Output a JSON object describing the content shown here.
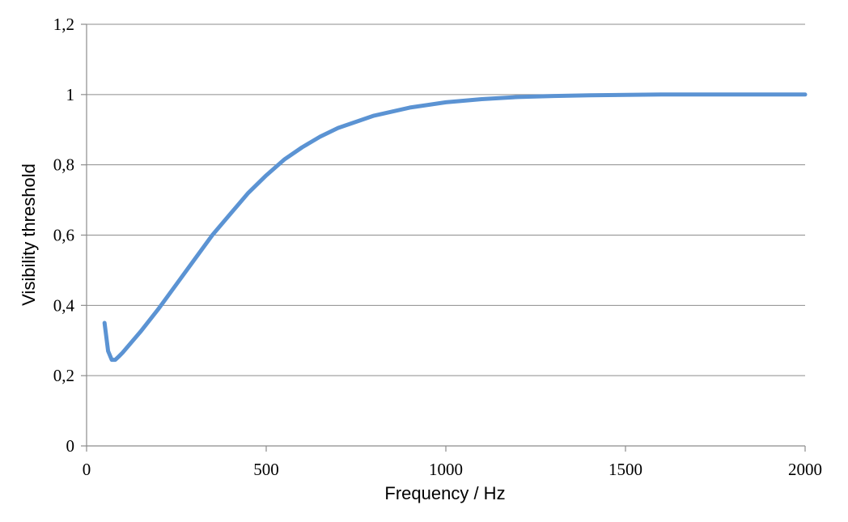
{
  "chart_data": {
    "type": "line",
    "title": "",
    "xlabel": "Frequency / Hz",
    "ylabel": "Visibility threshold",
    "xlim": [
      0,
      2000
    ],
    "ylim": [
      0,
      1.2
    ],
    "x_ticks": [
      0,
      500,
      1000,
      1500,
      2000
    ],
    "x_tick_labels": [
      "0",
      "500",
      "1000",
      "1500",
      "2000"
    ],
    "y_ticks": [
      0,
      0.2,
      0.4,
      0.6,
      0.8,
      1.0,
      1.2
    ],
    "y_tick_labels": [
      "0",
      "0,2",
      "0,4",
      "0,6",
      "0,8",
      "1",
      "1,2"
    ],
    "grid": "horizontal",
    "legend": "none",
    "series": [
      {
        "color": "#5b93d3",
        "x": [
          50,
          60,
          70,
          80,
          90,
          100,
          125,
          150,
          200,
          250,
          300,
          350,
          400,
          450,
          500,
          550,
          600,
          650,
          700,
          800,
          900,
          1000,
          1100,
          1200,
          1300,
          1400,
          1500,
          1600,
          1700,
          1800,
          1900,
          2000
        ],
        "y": [
          0.35,
          0.27,
          0.245,
          0.245,
          0.255,
          0.265,
          0.295,
          0.325,
          0.39,
          0.46,
          0.53,
          0.6,
          0.66,
          0.72,
          0.77,
          0.815,
          0.85,
          0.88,
          0.905,
          0.94,
          0.963,
          0.978,
          0.987,
          0.993,
          0.996,
          0.998,
          0.999,
          1.0,
          1.0,
          1.0,
          1.0,
          1.0
        ]
      }
    ]
  }
}
